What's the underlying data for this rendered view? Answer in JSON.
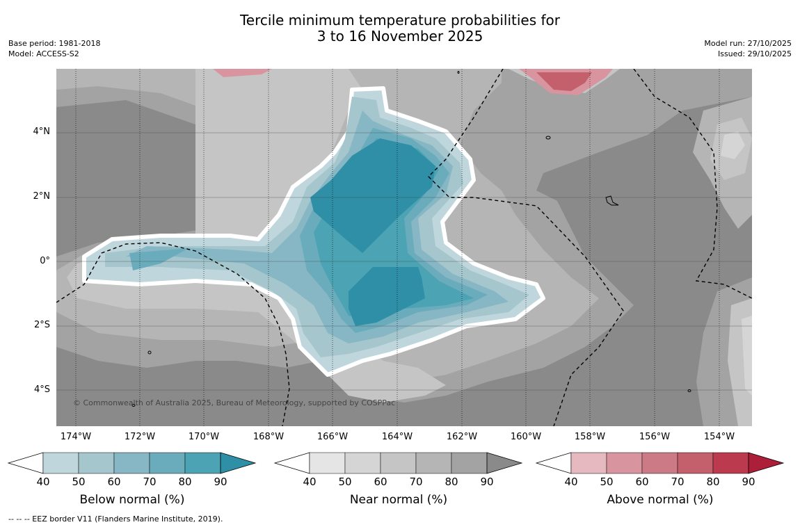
{
  "header": {
    "title_line1": "Tercile minimum temperature probabilities for",
    "title_line2": "3 to 16 November 2025",
    "base_period": "Base period: 1981-2018",
    "model": "Model: ACCESS-S2",
    "model_run": "Model run: 27/10/2025",
    "issued": "Issued: 29/10/2025"
  },
  "map": {
    "lat_labels": [
      "4°N",
      "2°N",
      "0°",
      "2°S",
      "4°S"
    ],
    "lon_labels": [
      "174°W",
      "172°W",
      "170°W",
      "168°W",
      "166°W",
      "164°W",
      "162°W",
      "160°W",
      "158°W",
      "156°W",
      "154°W"
    ],
    "copyright": "© Commonwealth of Australia 2025, Bureau of Meteorology, supported by COSPPac"
  },
  "colorbars": [
    {
      "name": "below",
      "title": "Below normal (%)",
      "ticks": [
        "40",
        "50",
        "60",
        "70",
        "80",
        "90"
      ],
      "colors": [
        "#bfd6dd",
        "#a4c6cc",
        "#87b6c4",
        "#6aacbc",
        "#4ca3b4",
        "#2e8fa6"
      ]
    },
    {
      "name": "near",
      "title": "Near normal (%)",
      "ticks": [
        "40",
        "50",
        "60",
        "70",
        "80",
        "90"
      ],
      "colors": [
        "#e5e5e5",
        "#d5d5d5",
        "#c5c5c5",
        "#b5b5b5",
        "#a3a3a3",
        "#8a8a8a"
      ]
    },
    {
      "name": "above",
      "title": "Above normal (%)",
      "ticks": [
        "40",
        "50",
        "60",
        "70",
        "80",
        "90"
      ],
      "colors": [
        "#e6b9c0",
        "#d9959f",
        "#cc7a86",
        "#c45f6c",
        "#bb3a4d",
        "#ad1e38"
      ]
    }
  ],
  "footnote": "--  --  -- EEZ border V11 (Flanders Marine Institute, 2019)."
}
